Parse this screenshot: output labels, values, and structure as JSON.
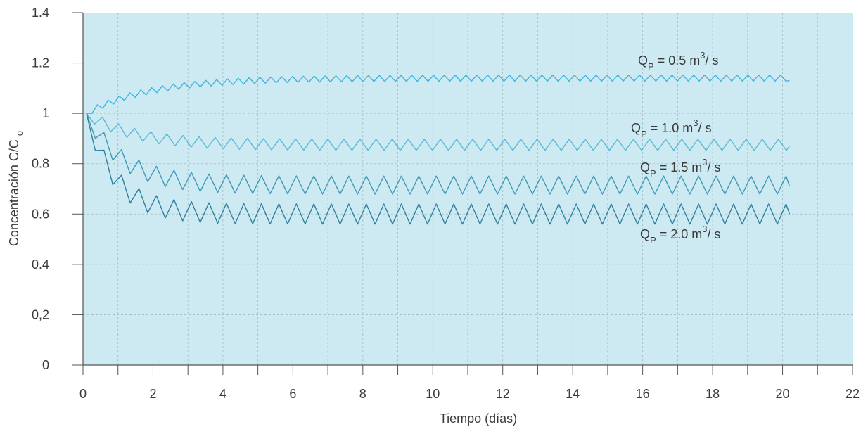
{
  "chart_data": {
    "type": "line",
    "title": "",
    "xlabel": "Tiempo (días)",
    "ylabel": "Concentración C/C",
    "ylabel_sub": "o",
    "xlim": [
      0,
      22
    ],
    "ylim": [
      0,
      1.4
    ],
    "x_ticks": [
      0,
      2,
      4,
      6,
      8,
      10,
      12,
      14,
      16,
      18,
      20,
      22
    ],
    "x_tick_labels": [
      "0",
      "2",
      "4",
      "6",
      "8",
      "10",
      "12",
      "14",
      "16",
      "18",
      "20",
      "22"
    ],
    "y_ticks": [
      0,
      0.2,
      0.4,
      0.6,
      0.8,
      1.0,
      1.2,
      1.4
    ],
    "y_tick_labels": [
      "0",
      "0,2",
      "0.4",
      "0.6",
      "0.8",
      "1",
      "1.2",
      "1.4"
    ],
    "grid": true,
    "background_color": "#cdeaf3",
    "series": [
      {
        "label_parts": {
          "q": "Q",
          "sub": "P",
          "eq": " = 0.5 m",
          "sup": "3",
          "unit": "/ s"
        },
        "color": "#3fb3dc",
        "start": 1.0,
        "steady": 1.14,
        "amplitude": 0.012,
        "rise_days": 1.8,
        "period": 0.31,
        "t_end": 20.2,
        "final": 1.13
      },
      {
        "label_parts": {
          "q": "Q",
          "sub": "P",
          "eq": " = 1.0 m",
          "sup": "3",
          "unit": "/ s"
        },
        "color": "#5ab9d6",
        "start": 1.0,
        "steady": 0.875,
        "amplitude": 0.022,
        "rise_days": 1.3,
        "period": 0.46,
        "t_end": 20.2,
        "final": 0.87
      },
      {
        "label_parts": {
          "q": "Q",
          "sub": "P",
          "eq": " = 1.5 m",
          "sup": "3",
          "unit": "/ s"
        },
        "color": "#3d99b8",
        "start": 1.0,
        "steady": 0.715,
        "amplitude": 0.036,
        "rise_days": 1.0,
        "period": 0.5,
        "t_end": 20.2,
        "final": 0.71
      },
      {
        "label_parts": {
          "q": "Q",
          "sub": "P",
          "eq": " = 2.0 m",
          "sup": "3",
          "unit": "/ s"
        },
        "color": "#2f7f9f",
        "start": 1.0,
        "steady": 0.6,
        "amplitude": 0.04,
        "rise_days": 0.8,
        "period": 0.5,
        "t_end": 20.2,
        "final": 0.6
      }
    ]
  }
}
